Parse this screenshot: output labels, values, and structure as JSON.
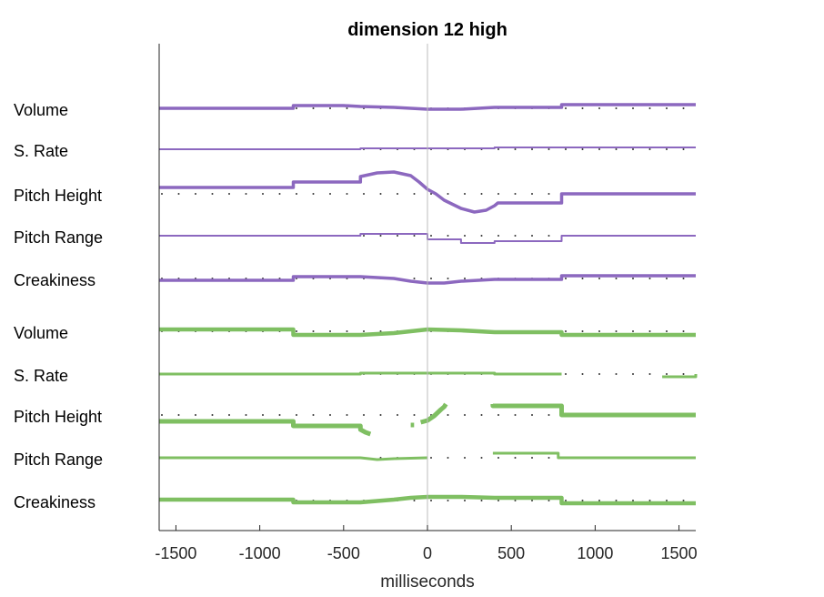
{
  "chart_data": {
    "type": "line",
    "title": "dimension 12 high",
    "xlabel": "milliseconds",
    "xlim": [
      -1600,
      1600
    ],
    "xticks": [
      -1500,
      -1000,
      -500,
      0,
      500,
      1000,
      1500
    ],
    "xtick_labels": [
      "-1500",
      "-1000",
      "-500",
      "0",
      "500",
      "1000",
      "1500"
    ],
    "vertical_reference_x": 0,
    "grid": false,
    "rows": [
      {
        "label": "Volume",
        "color": "#8c68bf",
        "width": 3.5,
        "points": [
          [
            -1600,
            0
          ],
          [
            -800,
            0
          ],
          [
            -800,
            -3
          ],
          [
            -500,
            -3
          ],
          [
            -400,
            -2
          ],
          [
            -200,
            -1
          ],
          [
            -100,
            0
          ],
          [
            0,
            1
          ],
          [
            200,
            1
          ],
          [
            400,
            -1
          ],
          [
            800,
            -1
          ],
          [
            800,
            -4
          ],
          [
            1600,
            -4
          ]
        ]
      },
      {
        "label": "S. Rate",
        "color": "#8c68bf",
        "width": 2,
        "points": [
          [
            -1600,
            0
          ],
          [
            -400,
            0
          ],
          [
            -400,
            -1
          ],
          [
            400,
            -1
          ],
          [
            400,
            -2
          ],
          [
            1600,
            -2
          ]
        ]
      },
      {
        "label": "Pitch Height",
        "color": "#8c68bf",
        "width": 3.5,
        "points": [
          [
            -1600,
            -7
          ],
          [
            -800,
            -7
          ],
          [
            -800,
            -13
          ],
          [
            -400,
            -13
          ],
          [
            -400,
            -19
          ],
          [
            -300,
            -23
          ],
          [
            -200,
            -24
          ],
          [
            -100,
            -20
          ],
          [
            -50,
            -13
          ],
          [
            0,
            -5
          ],
          [
            50,
            0
          ],
          [
            100,
            7
          ],
          [
            200,
            16
          ],
          [
            280,
            20
          ],
          [
            350,
            18
          ],
          [
            400,
            13
          ],
          [
            420,
            10
          ],
          [
            800,
            10
          ],
          [
            800,
            0
          ],
          [
            1600,
            0
          ]
        ]
      },
      {
        "label": "Pitch Range",
        "color": "#8c68bf",
        "width": 2,
        "points": [
          [
            -1600,
            0
          ],
          [
            -400,
            0
          ],
          [
            -400,
            -2
          ],
          [
            0,
            -2
          ],
          [
            0,
            4
          ],
          [
            200,
            4
          ],
          [
            200,
            8
          ],
          [
            400,
            8
          ],
          [
            400,
            6
          ],
          [
            800,
            6
          ],
          [
            800,
            0
          ],
          [
            1600,
            0
          ]
        ]
      },
      {
        "label": "Creakiness",
        "color": "#8c68bf",
        "width": 3.5,
        "points": [
          [
            -1600,
            2
          ],
          [
            -800,
            2
          ],
          [
            -800,
            -2
          ],
          [
            -400,
            -2
          ],
          [
            -200,
            0
          ],
          [
            -100,
            3
          ],
          [
            0,
            5
          ],
          [
            100,
            5
          ],
          [
            200,
            3
          ],
          [
            400,
            1
          ],
          [
            800,
            1
          ],
          [
            800,
            -3
          ],
          [
            1600,
            -3
          ]
        ]
      },
      {
        "label": "Volume",
        "color": "#7fbf62",
        "width": 4.5,
        "points": [
          [
            -1600,
            -2
          ],
          [
            -800,
            -2
          ],
          [
            -800,
            4
          ],
          [
            -400,
            4
          ],
          [
            -200,
            2
          ],
          [
            -100,
            0
          ],
          [
            0,
            -2
          ],
          [
            200,
            -1
          ],
          [
            400,
            1
          ],
          [
            800,
            1
          ],
          [
            800,
            4
          ],
          [
            1600,
            4
          ]
        ]
      },
      {
        "label": "S. Rate",
        "color": "#7fbf62",
        "width": 3,
        "segments": [
          [
            [
              -1600,
              0
            ],
            [
              -400,
              0
            ],
            [
              -400,
              -1
            ],
            [
              400,
              -1
            ],
            [
              400,
              0
            ],
            [
              800,
              0
            ]
          ],
          [
            [
              1400,
              3
            ],
            [
              1600,
              3
            ],
            [
              1600,
              0
            ]
          ]
        ]
      },
      {
        "label": "Pitch Height",
        "color": "#7fbf62",
        "width": 5,
        "segments": [
          [
            [
              -1600,
              7
            ],
            [
              -800,
              7
            ],
            [
              -800,
              12
            ],
            [
              -400,
              12
            ],
            [
              -400,
              16
            ],
            [
              -370,
              19
            ],
            [
              -340,
              21
            ]
          ],
          [
            [
              -100,
              11
            ],
            [
              -80,
              11
            ]
          ],
          [
            [
              -40,
              8
            ],
            [
              0,
              6
            ],
            [
              40,
              1
            ],
            [
              80,
              -6
            ],
            [
              100,
              -9
            ],
            [
              110,
              -12
            ]
          ],
          [
            [
              390,
              -12
            ],
            [
              390,
              -10
            ],
            [
              800,
              -10
            ],
            [
              800,
              0
            ],
            [
              1600,
              0
            ]
          ]
        ]
      },
      {
        "label": "Pitch Range",
        "color": "#7fbf62",
        "width": 3,
        "segments": [
          [
            [
              -1600,
              0
            ],
            [
              -400,
              0
            ],
            [
              -300,
              2
            ],
            [
              -200,
              1
            ],
            [
              0,
              0
            ]
          ],
          [
            [
              390,
              -5
            ],
            [
              780,
              -5
            ],
            [
              780,
              0
            ],
            [
              1600,
              0
            ]
          ]
        ]
      },
      {
        "label": "Creakiness",
        "color": "#7fbf62",
        "width": 4.5,
        "points": [
          [
            -1600,
            -1
          ],
          [
            -800,
            -1
          ],
          [
            -800,
            2
          ],
          [
            -400,
            2
          ],
          [
            -200,
            -1
          ],
          [
            -100,
            -3
          ],
          [
            0,
            -4
          ],
          [
            200,
            -4
          ],
          [
            400,
            -3
          ],
          [
            800,
            -3
          ],
          [
            800,
            3
          ],
          [
            1600,
            3
          ]
        ]
      }
    ]
  }
}
